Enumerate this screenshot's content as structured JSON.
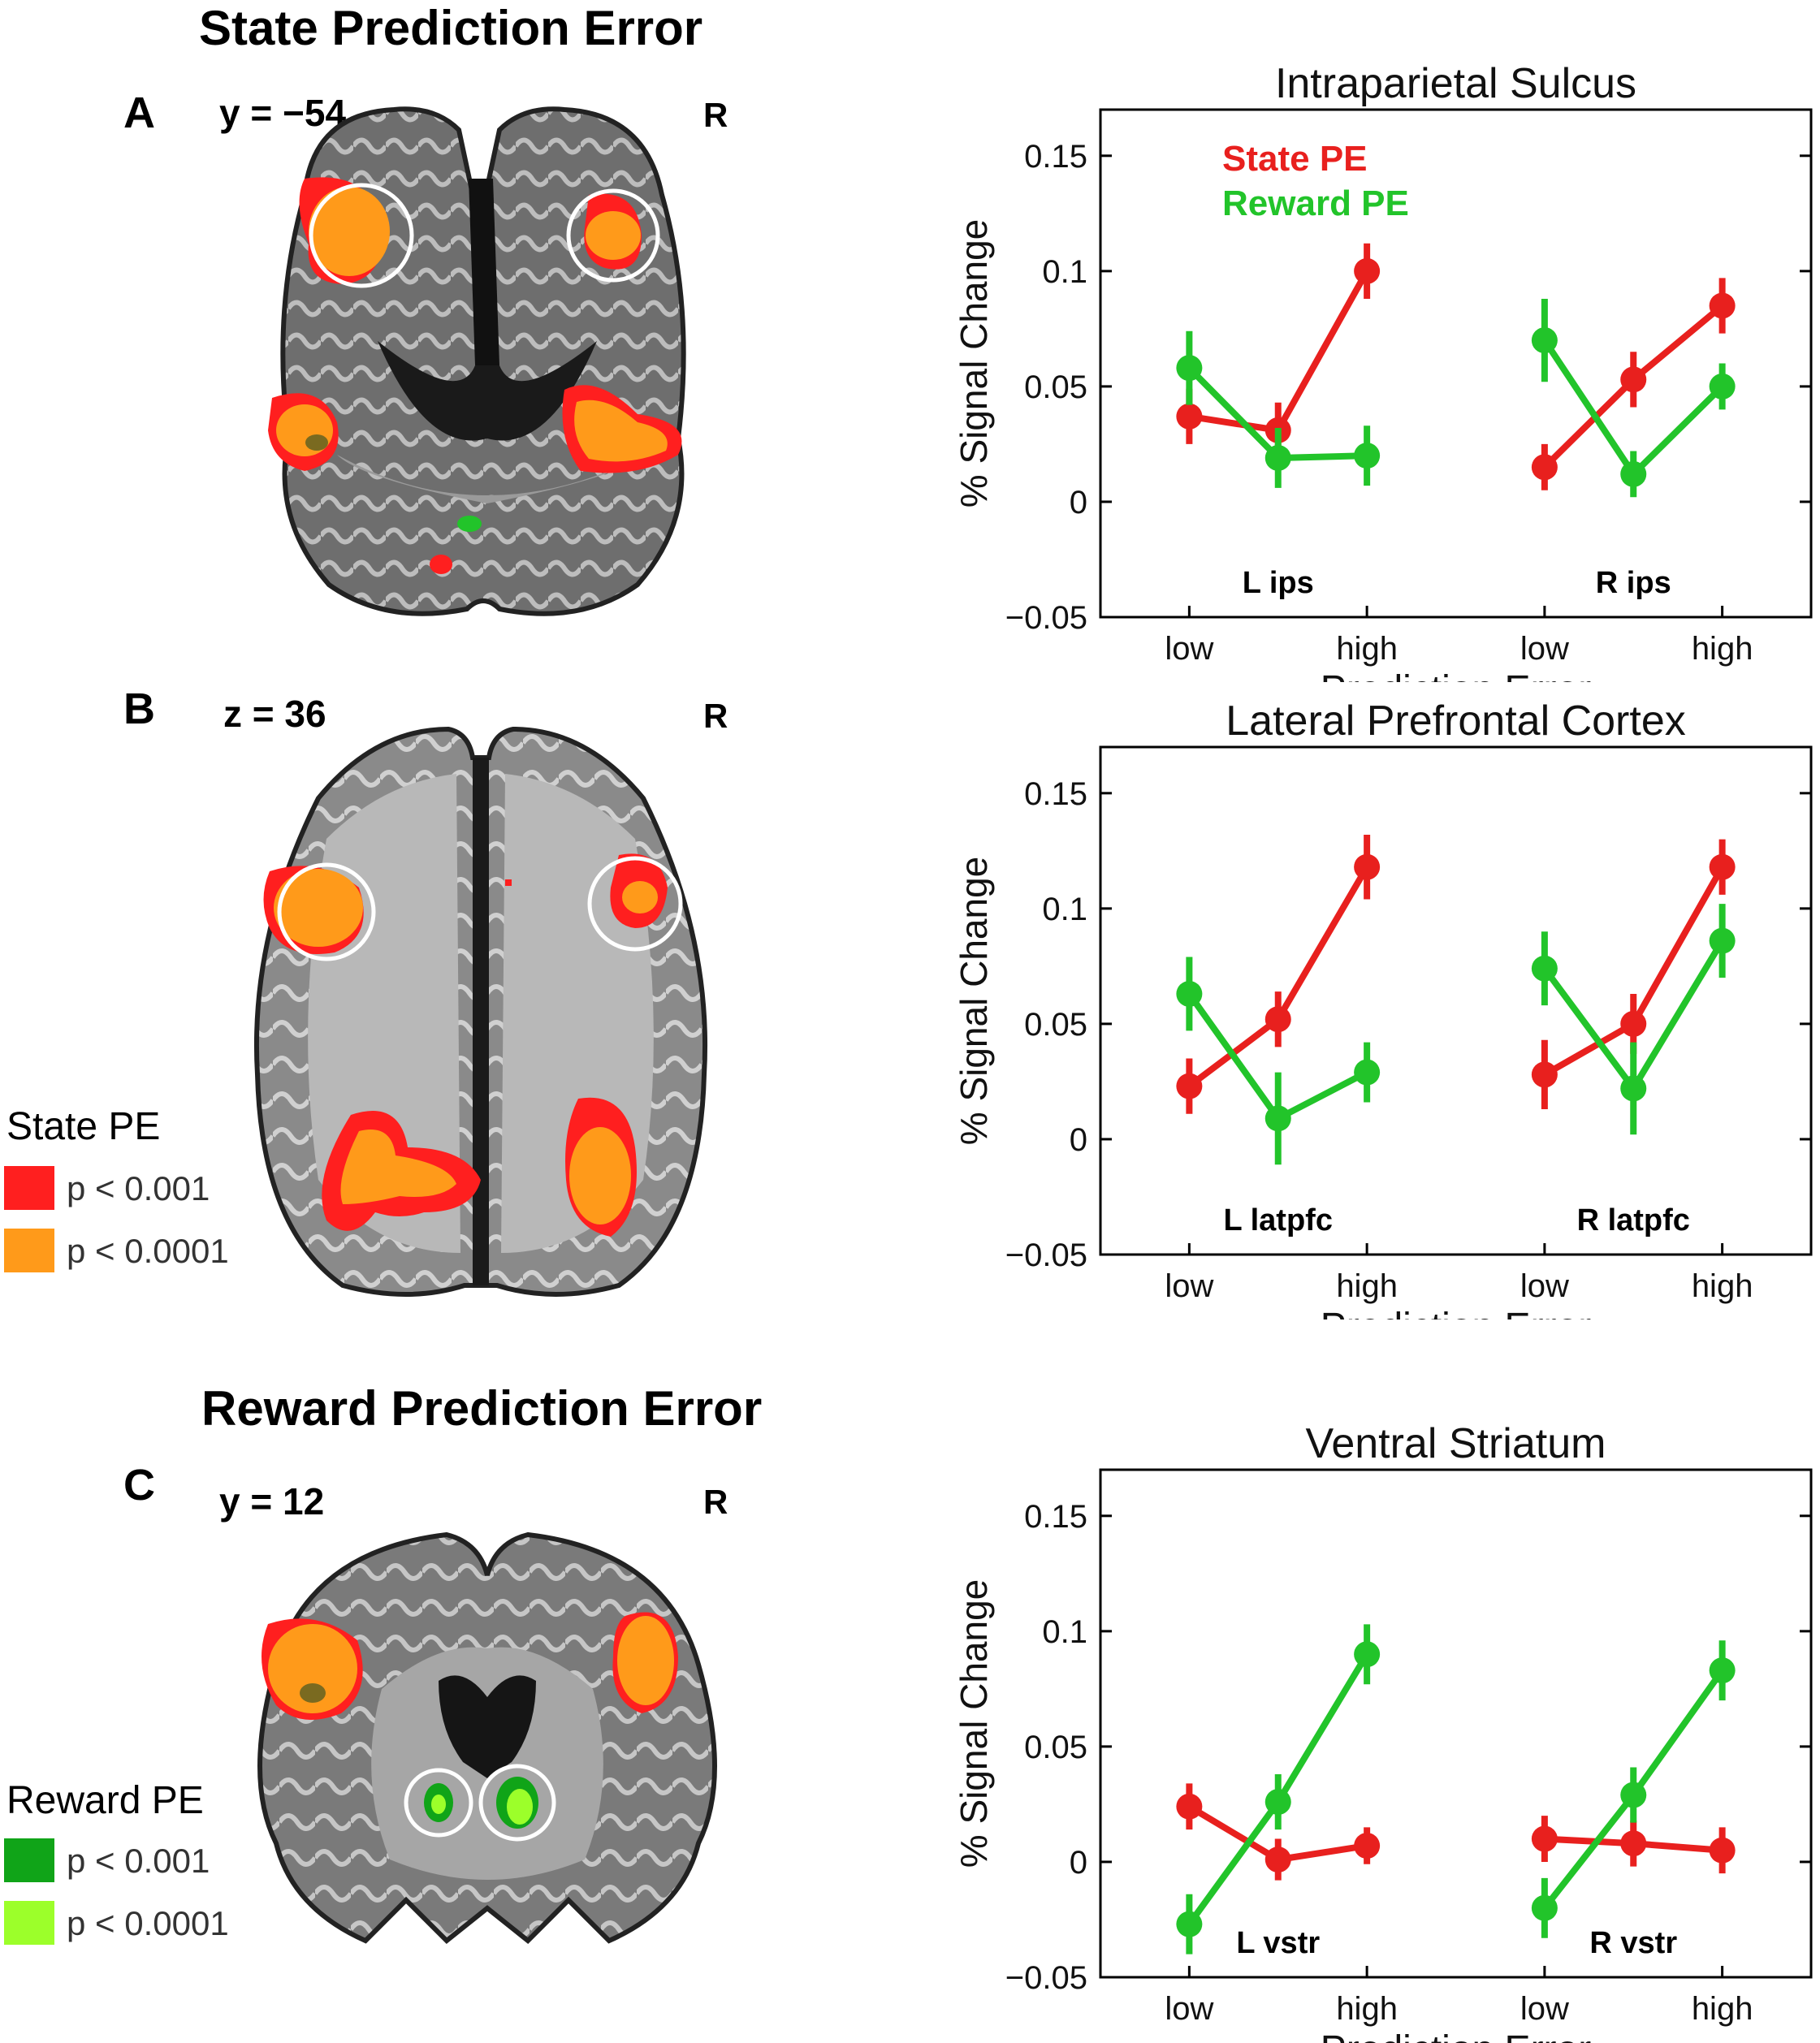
{
  "colors": {
    "state_pe": "#e8201e",
    "reward_pe": "#22c42a",
    "p001_state": "#ff1f1f",
    "p0001_state": "#ff9a1a",
    "p001_reward": "#10a418",
    "p0001_reward": "#9cff2a"
  },
  "state_section": {
    "title": "State Prediction Error",
    "panel_a": {
      "letter": "A",
      "coord": "y = −54",
      "side": "R"
    },
    "panel_b": {
      "letter": "B",
      "coord": "z = 36",
      "side": "R"
    },
    "legend": {
      "title": "State PE",
      "rows": [
        {
          "label": "p < 0.001",
          "color": "#ff1f1f"
        },
        {
          "label": "p < 0.0001",
          "color": "#ff9a1a"
        }
      ]
    }
  },
  "reward_section": {
    "title": "Reward Prediction Error",
    "panel_c": {
      "letter": "C",
      "coord": "y = 12",
      "side": "R"
    },
    "legend": {
      "title": "Reward PE",
      "rows": [
        {
          "label": "p < 0.001",
          "color": "#10a418"
        },
        {
          "label": "p < 0.0001",
          "color": "#9cff2a"
        }
      ]
    }
  },
  "chart_data": [
    {
      "type": "line",
      "title": "Intraparietal Sulcus",
      "xlabel": "Prediction Error",
      "ylabel": "% Signal Change",
      "ylim": [
        -0.05,
        0.17
      ],
      "yticks": [
        "0.15",
        "0.1",
        "0.05",
        "0",
        "−0.05"
      ],
      "ytick_values": [
        0.15,
        0.1,
        0.05,
        0,
        -0.05
      ],
      "xtick_labels": [
        "low",
        "high",
        "low",
        "high"
      ],
      "legend": [
        "State PE",
        "Reward PE"
      ],
      "groups": [
        {
          "label": "L ips",
          "x": [
            1,
            2,
            3
          ]
        },
        {
          "label": "R ips",
          "x": [
            5,
            6,
            7
          ]
        }
      ],
      "series": [
        {
          "name": "State PE",
          "color": "#e8201e",
          "values": [
            0.037,
            0.031,
            0.1,
            0.015,
            0.053,
            0.085
          ],
          "errors": [
            0.012,
            0.012,
            0.012,
            0.01,
            0.012,
            0.012
          ]
        },
        {
          "name": "Reward PE",
          "color": "#22c42a",
          "values": [
            0.058,
            0.019,
            0.02,
            0.07,
            0.012,
            0.05
          ],
          "errors": [
            0.016,
            0.013,
            0.013,
            0.018,
            0.01,
            0.01
          ]
        }
      ]
    },
    {
      "type": "line",
      "title": "Lateral Prefrontal Cortex",
      "xlabel": "Prediction Error",
      "ylabel": "% Signal Change",
      "ylim": [
        -0.05,
        0.17
      ],
      "yticks": [
        "0.15",
        "0.1",
        "0.05",
        "0",
        "−0.05"
      ],
      "ytick_values": [
        0.15,
        0.1,
        0.05,
        0,
        -0.05
      ],
      "xtick_labels": [
        "low",
        "high",
        "low",
        "high"
      ],
      "legend": [],
      "groups": [
        {
          "label": "L latpfc",
          "x": [
            1,
            2,
            3
          ]
        },
        {
          "label": "R latpfc",
          "x": [
            5,
            6,
            7
          ]
        }
      ],
      "series": [
        {
          "name": "State PE",
          "color": "#e8201e",
          "values": [
            0.023,
            0.052,
            0.118,
            0.028,
            0.05,
            0.118
          ],
          "errors": [
            0.012,
            0.012,
            0.014,
            0.015,
            0.013,
            0.012
          ]
        },
        {
          "name": "Reward PE",
          "color": "#22c42a",
          "values": [
            0.063,
            0.009,
            0.029,
            0.074,
            0.022,
            0.086
          ],
          "errors": [
            0.016,
            0.02,
            0.013,
            0.016,
            0.02,
            0.016
          ]
        }
      ]
    },
    {
      "type": "line",
      "title": "Ventral Striatum",
      "xlabel": "Prediction Error",
      "ylabel": "% Signal Change",
      "ylim": [
        -0.05,
        0.17
      ],
      "yticks": [
        "0.15",
        "0.1",
        "0.05",
        "0",
        "−0.05"
      ],
      "ytick_values": [
        0.15,
        0.1,
        0.05,
        0,
        -0.05
      ],
      "xtick_labels": [
        "low",
        "high",
        "low",
        "high"
      ],
      "legend": [],
      "groups": [
        {
          "label": "L vstr",
          "x": [
            1,
            2,
            3
          ]
        },
        {
          "label": "R vstr",
          "x": [
            5,
            6,
            7
          ]
        }
      ],
      "series": [
        {
          "name": "State PE",
          "color": "#e8201e",
          "values": [
            0.024,
            0.001,
            0.007,
            0.01,
            0.008,
            0.005
          ],
          "errors": [
            0.01,
            0.009,
            0.008,
            0.01,
            0.01,
            0.01
          ]
        },
        {
          "name": "Reward PE",
          "color": "#22c42a",
          "values": [
            -0.027,
            0.026,
            0.09,
            -0.02,
            0.029,
            0.083
          ],
          "errors": [
            0.013,
            0.012,
            0.013,
            0.013,
            0.012,
            0.013
          ]
        }
      ]
    }
  ]
}
